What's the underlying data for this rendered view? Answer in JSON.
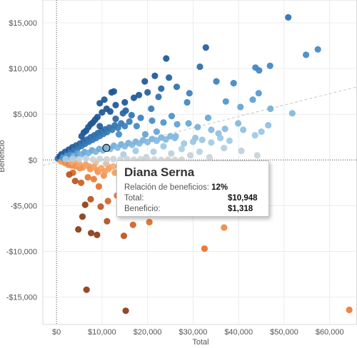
{
  "chart_data": {
    "type": "scatter",
    "xlabel": "Total",
    "ylabel": "Beneficio",
    "xlim": [
      -3000,
      66000
    ],
    "ylim": [
      -18000,
      17500
    ],
    "x_ticks": [
      0,
      10000,
      20000,
      30000,
      40000,
      50000,
      60000
    ],
    "x_tick_labels": [
      "$0",
      "$10,000",
      "$20,000",
      "$30,000",
      "$40,000",
      "$50,000",
      "$60,000"
    ],
    "y_ticks": [
      15000,
      10000,
      5000,
      0,
      -5000,
      -10000,
      -15000
    ],
    "y_tick_labels": [
      "$15,000",
      "$10,000",
      "$5,000",
      "$0",
      "-$5,000",
      "-$10,000",
      "-$15,000"
    ],
    "grid": true,
    "trend_line": {
      "from": [
        -3000,
        -600
      ],
      "to": [
        66000,
        8000
      ]
    },
    "color_scale": {
      "negative": "#a0431a",
      "neutral": "#d3d3d3",
      "positive": "#1f5f9c"
    },
    "highlight": {
      "x": 10948,
      "y": 1318
    },
    "points": [
      [
        50900,
        15600
      ],
      [
        32800,
        12300
      ],
      [
        24100,
        11100
      ],
      [
        57400,
        12100
      ],
      [
        54800,
        11500
      ],
      [
        46900,
        10300
      ],
      [
        44500,
        9800
      ],
      [
        43700,
        10100
      ],
      [
        38900,
        8400
      ],
      [
        31500,
        10200
      ],
      [
        24700,
        9000
      ],
      [
        35100,
        8600
      ],
      [
        21600,
        9200
      ],
      [
        18100,
        7100
      ],
      [
        12600,
        7500
      ],
      [
        44400,
        7300
      ],
      [
        51800,
        5100
      ],
      [
        37200,
        6400
      ],
      [
        29200,
        7300
      ],
      [
        26400,
        8000
      ],
      [
        19400,
        8600
      ],
      [
        12100,
        7400
      ],
      [
        40400,
        5800
      ],
      [
        47000,
        5600
      ],
      [
        43100,
        6600
      ],
      [
        15200,
        5400
      ],
      [
        14600,
        5100
      ],
      [
        20800,
        5600
      ],
      [
        28700,
        6300
      ],
      [
        22400,
        6900
      ],
      [
        11800,
        5300
      ],
      [
        16500,
        4900
      ],
      [
        25300,
        4800
      ],
      [
        33300,
        4600
      ],
      [
        39900,
        4000
      ],
      [
        46500,
        3800
      ],
      [
        43600,
        2700
      ],
      [
        35600,
        2900
      ],
      [
        30500,
        2400
      ],
      [
        26200,
        2600
      ],
      [
        22000,
        3100
      ],
      [
        19500,
        2800
      ],
      [
        17600,
        3700
      ],
      [
        13700,
        2800
      ],
      [
        23500,
        1500
      ],
      [
        27500,
        1200
      ],
      [
        31400,
        900
      ],
      [
        36800,
        1300
      ],
      [
        40600,
        1000
      ],
      [
        44100,
        500
      ],
      [
        33600,
        300
      ],
      [
        29400,
        500
      ],
      [
        25200,
        700
      ],
      [
        21300,
        900
      ],
      [
        17400,
        1000
      ],
      [
        14700,
        600
      ],
      [
        19700,
        300
      ],
      [
        24100,
        -200
      ],
      [
        15400,
        -600
      ],
      [
        20200,
        -900
      ],
      [
        18200,
        -300
      ],
      [
        12800,
        -1400
      ],
      [
        14100,
        -2500
      ],
      [
        13300,
        -3900
      ],
      [
        11300,
        -4500
      ],
      [
        9700,
        -5100
      ],
      [
        7500,
        -4300
      ],
      [
        6300,
        -4900
      ],
      [
        5700,
        -6200
      ],
      [
        4800,
        -7600
      ],
      [
        7600,
        -8000
      ],
      [
        8900,
        -8200
      ],
      [
        11100,
        -6700
      ],
      [
        15400,
        -5000
      ],
      [
        16800,
        -7100
      ],
      [
        14800,
        -8300
      ],
      [
        20400,
        -6800
      ],
      [
        36800,
        -7400
      ],
      [
        32500,
        -9700
      ],
      [
        6600,
        -14200
      ],
      [
        15200,
        -16500
      ],
      [
        64300,
        -16400
      ],
      [
        5400,
        -2500
      ],
      [
        3600,
        -1400
      ],
      [
        2800,
        -1600
      ],
      [
        4100,
        -2300
      ],
      [
        6900,
        -1900
      ],
      [
        8200,
        -2100
      ],
      [
        9300,
        -2900
      ],
      [
        10400,
        -1700
      ],
      [
        3400,
        -600
      ],
      [
        5100,
        -900
      ],
      [
        7200,
        -700
      ],
      [
        9100,
        -1300
      ],
      [
        11600,
        -800
      ],
      [
        4400,
        -300
      ],
      [
        6400,
        -500
      ],
      [
        8600,
        -300
      ],
      [
        10900,
        -400
      ],
      [
        12500,
        -700
      ],
      [
        300,
        150
      ],
      [
        700,
        380
      ],
      [
        1100,
        620
      ],
      [
        1500,
        420
      ],
      [
        1900,
        880
      ],
      [
        2300,
        630
      ],
      [
        2700,
        1120
      ],
      [
        3100,
        870
      ],
      [
        3500,
        1380
      ],
      [
        3900,
        1080
      ],
      [
        4300,
        1580
      ],
      [
        4700,
        1320
      ],
      [
        5100,
        1780
      ],
      [
        5500,
        1530
      ],
      [
        5900,
        2030
      ],
      [
        6300,
        1780
      ],
      [
        6700,
        2230
      ],
      [
        7100,
        2000
      ],
      [
        7500,
        2480
      ],
      [
        7900,
        2200
      ],
      [
        8300,
        2700
      ],
      [
        8700,
        2400
      ],
      [
        9100,
        2950
      ],
      [
        9500,
        2620
      ],
      [
        9900,
        3150
      ],
      [
        10300,
        2850
      ],
      [
        10700,
        3350
      ],
      [
        11100,
        3050
      ],
      [
        11600,
        3550
      ],
      [
        12200,
        3300
      ],
      [
        12800,
        3800
      ],
      [
        13500,
        3500
      ],
      [
        14200,
        4000
      ],
      [
        15000,
        3700
      ],
      [
        1000,
        -150
      ],
      [
        1800,
        -320
      ],
      [
        2600,
        -520
      ],
      [
        3400,
        -260
      ],
      [
        4200,
        -700
      ],
      [
        5000,
        -450
      ],
      [
        5800,
        -820
      ],
      [
        6600,
        -600
      ],
      [
        7400,
        -1000
      ],
      [
        8200,
        -780
      ],
      [
        9000,
        -1150
      ],
      [
        9800,
        -900
      ],
      [
        10600,
        -1250
      ],
      [
        11400,
        -1000
      ],
      [
        1400,
        240
      ],
      [
        2200,
        380
      ],
      [
        3000,
        520
      ],
      [
        3800,
        420
      ],
      [
        4600,
        720
      ],
      [
        5400,
        600
      ],
      [
        6200,
        860
      ],
      [
        7000,
        760
      ],
      [
        7800,
        1050
      ],
      [
        8600,
        900
      ],
      [
        9400,
        1200
      ],
      [
        10200,
        1050
      ],
      [
        11000,
        1400
      ],
      [
        11800,
        1200
      ],
      [
        12600,
        1550
      ],
      [
        13400,
        1350
      ],
      [
        14200,
        1700
      ],
      [
        15000,
        1500
      ],
      [
        15800,
        1850
      ],
      [
        16600,
        1650
      ],
      [
        17400,
        2000
      ],
      [
        18200,
        1800
      ],
      [
        19000,
        2150
      ],
      [
        20000,
        1950
      ],
      [
        21000,
        2300
      ],
      [
        22000,
        2100
      ],
      [
        23000,
        2450
      ],
      [
        24000,
        2250
      ],
      [
        25000,
        2600
      ],
      [
        26000,
        2400
      ],
      [
        2000,
        100
      ],
      [
        3500,
        120
      ],
      [
        5000,
        80
      ],
      [
        6500,
        150
      ],
      [
        8000,
        50
      ],
      [
        9500,
        120
      ],
      [
        11000,
        60
      ],
      [
        12500,
        100
      ],
      [
        14000,
        40
      ],
      [
        15500,
        90
      ],
      [
        17000,
        30
      ],
      [
        18500,
        80
      ],
      [
        20000,
        20
      ],
      [
        21500,
        60
      ],
      [
        23000,
        10
      ],
      [
        24500,
        40
      ],
      [
        26000,
        10
      ],
      [
        27500,
        30
      ],
      [
        28000,
        1800
      ],
      [
        30000,
        2000
      ],
      [
        32000,
        2200
      ],
      [
        34000,
        1900
      ],
      [
        36000,
        2400
      ],
      [
        38000,
        2100
      ],
      [
        6000,
        3000
      ],
      [
        7000,
        3600
      ],
      [
        8000,
        4100
      ],
      [
        9000,
        4700
      ],
      [
        10000,
        5200
      ],
      [
        11000,
        5600
      ],
      [
        9500,
        6200
      ],
      [
        10500,
        6600
      ],
      [
        13000,
        6000
      ],
      [
        15000,
        6300
      ],
      [
        17000,
        6800
      ],
      [
        20000,
        7400
      ],
      [
        23000,
        7800
      ],
      [
        5500,
        2600
      ],
      [
        6500,
        3200
      ],
      [
        7500,
        3900
      ],
      [
        8500,
        4400
      ],
      [
        9500,
        3700
      ],
      [
        13000,
        4500
      ],
      [
        16000,
        4200
      ],
      [
        18500,
        4600
      ],
      [
        21000,
        4300
      ],
      [
        23500,
        4100
      ],
      [
        26500,
        3900
      ],
      [
        29000,
        4000
      ],
      [
        31000,
        3600
      ],
      [
        34000,
        3300
      ],
      [
        37000,
        3400
      ],
      [
        41000,
        3300
      ],
      [
        45000,
        3100
      ]
    ]
  },
  "tooltip": {
    "name": "Diana Serna",
    "ratio_label": "Relación de beneficios:",
    "ratio_value": "12%",
    "total_label": "Total:",
    "total_value": "$10,948",
    "profit_label": "Beneficio:",
    "profit_value": "$1,318"
  }
}
